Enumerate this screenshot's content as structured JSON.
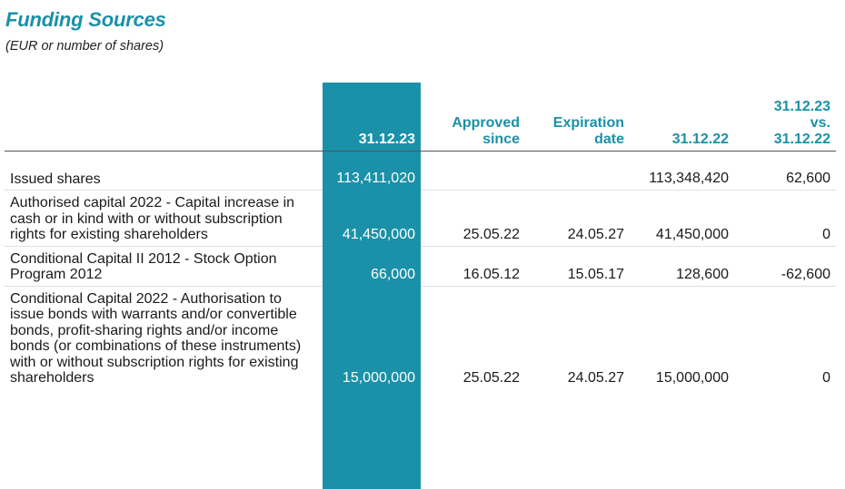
{
  "title": "Funding Sources",
  "subtitle": "(EUR or number of shares)",
  "columns": {
    "current": "31.12.23",
    "approved_line1": "Approved",
    "approved_line2": "since",
    "expiration_line1": "Expiration",
    "expiration_line2": "date",
    "prior": "31.12.22",
    "change_line1": "31.12.23",
    "change_line2": "vs.",
    "change_line3": "31.12.22"
  },
  "colors": {
    "accent": "#1a91a8"
  },
  "rows": [
    {
      "label": "Issued shares",
      "current": "113,411,020",
      "approved": "",
      "expiration": "",
      "prior": "113,348,420",
      "change": "62,600"
    },
    {
      "label": "Authorised capital 2022 - Capital increase in cash or in kind with or without subscription rights for existing shareholders",
      "current": "41,450,000",
      "approved": "25.05.22",
      "expiration": "24.05.27",
      "prior": "41,450,000",
      "change": "0"
    },
    {
      "label": "Conditional Capital II 2012 - Stock Option Program 2012",
      "current": "66,000",
      "approved": "16.05.12",
      "expiration": "15.05.17",
      "prior": "128,600",
      "change": "-62,600"
    },
    {
      "label": "Conditional Capital 2022 - Authorisation to issue bonds with warrants and/or convertible bonds, profit-sharing rights and/or income bonds (or combinations of these instruments) with or without subscription rights for existing shareholders",
      "current": "15,000,000",
      "approved": "25.05.22",
      "expiration": "24.05.27",
      "prior": "15,000,000",
      "change": "0"
    }
  ]
}
